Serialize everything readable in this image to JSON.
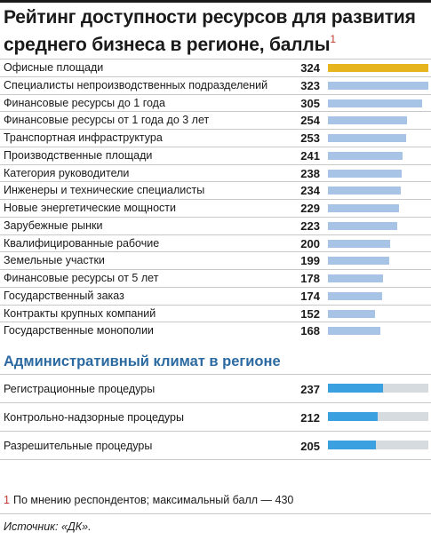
{
  "title": "Рейтинг доступности ресурсов для развития среднего бизнеса в регионе, баллы",
  "title_footnote_mark": "1",
  "colors": {
    "highlight_bar": "#e6b51e",
    "bar": "#a7c4e6",
    "admin_bar": "#3aa0e0",
    "admin_track": "#d6dbe0",
    "section_title": "#2b6aa1",
    "footnote_mark": "#c0392b"
  },
  "chart_data": [
    {
      "type": "bar",
      "orientation": "horizontal",
      "max_value": 430,
      "categories": [
        "Офисные площади",
        "Специалисты непроизводственных подразделений",
        "Финансовые ресурсы до 1 года",
        "Финансовые ресурсы от 1 года до 3 лет",
        "Транспортная инфраструктура",
        "Производственные площади",
        "Категория руководители",
        "Инженеры и технические специалисты",
        "Новые энергетические мощности",
        "Зарубежные рынки",
        "Квалифицированные рабочие",
        "Земельные участки",
        "Финансовые ресурсы от 5 лет",
        "Государственный заказ",
        "Контракты крупных компаний",
        "Государственные монополии"
      ],
      "values": [
        324,
        323,
        305,
        254,
        253,
        241,
        238,
        234,
        229,
        223,
        200,
        199,
        178,
        174,
        152,
        168
      ],
      "highlighted_index": 0
    },
    {
      "type": "bar",
      "orientation": "horizontal",
      "title": "Административный климат в регионе",
      "max_value": 430,
      "categories": [
        "Регистрационные процедуры",
        "Контрольно-надзорные процедуры",
        "Разрешительные процедуры"
      ],
      "values": [
        237,
        212,
        205
      ]
    }
  ],
  "footnote": {
    "mark": "1",
    "text": "По мнению респондентов; максимальный балл — 430"
  },
  "source": "Источник: «ДК»."
}
